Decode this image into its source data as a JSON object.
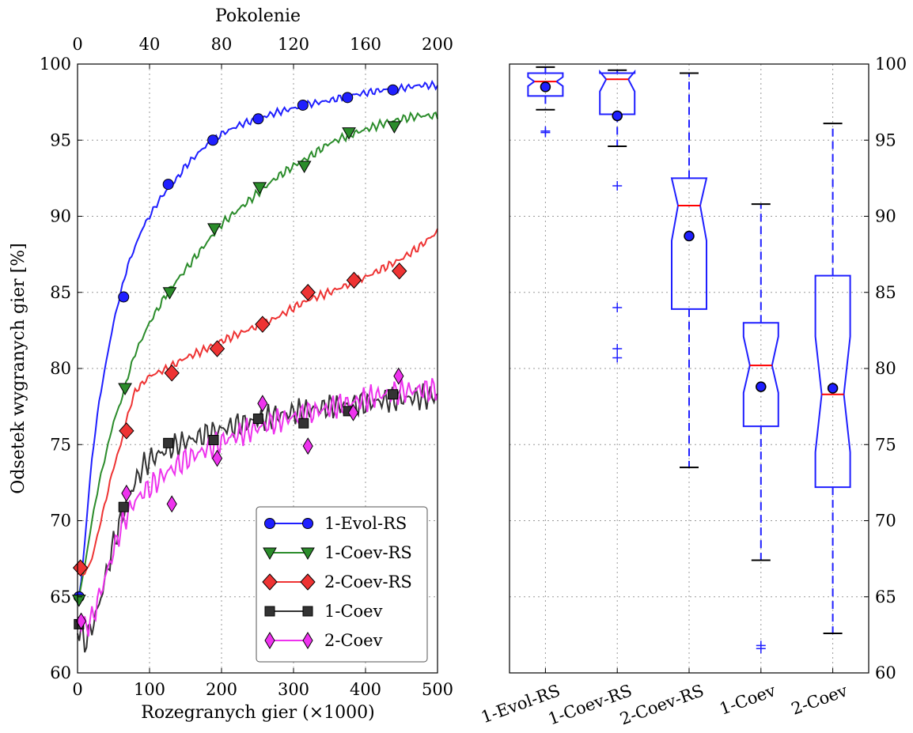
{
  "chart_data": [
    {
      "type": "line",
      "xlabel": "Rozegranych gier (×1000)",
      "ylabel": "Odsetek wygranych gier [%]",
      "top_xlabel": "Pokolenie",
      "xlim": [
        0,
        500
      ],
      "ylim": [
        60,
        100
      ],
      "xticks": [
        0,
        100,
        200,
        300,
        400,
        500
      ],
      "top_xticks": [
        0,
        40,
        80,
        120,
        160,
        200
      ],
      "yticks": [
        60,
        65,
        70,
        75,
        80,
        85,
        90,
        95,
        100
      ],
      "grid": true,
      "legend_position": "lower-right",
      "series": [
        {
          "name": "1-Evol-RS",
          "color": "#1f1fff",
          "marker": "circle",
          "x": [
            0,
            5,
            10,
            15,
            20,
            25,
            30,
            40,
            50,
            60,
            70,
            80,
            90,
            100,
            110,
            120,
            130,
            140,
            150,
            175,
            200,
            225,
            250,
            275,
            300,
            325,
            350,
            375,
            400,
            425,
            450,
            475,
            500
          ],
          "y": [
            64.5,
            66.0,
            68.5,
            71.5,
            74.0,
            76.0,
            77.8,
            80.5,
            83.0,
            85.0,
            86.8,
            88.0,
            89.2,
            90.0,
            90.8,
            91.5,
            92.0,
            92.6,
            93.3,
            94.5,
            95.4,
            96.0,
            96.4,
            96.8,
            97.1,
            97.4,
            97.6,
            97.9,
            98.1,
            98.3,
            98.4,
            98.6,
            98.6
          ],
          "marker_x": [
            2,
            64,
            126,
            188,
            251,
            313,
            375,
            438
          ],
          "marker_y": [
            65.0,
            84.7,
            92.1,
            95.0,
            96.4,
            97.3,
            97.8,
            98.3
          ]
        },
        {
          "name": "1-Coev-RS",
          "color": "#2b8c2b",
          "marker": "triangle-down",
          "x": [
            0,
            10,
            20,
            30,
            40,
            50,
            60,
            70,
            80,
            100,
            125,
            150,
            175,
            200,
            225,
            250,
            275,
            300,
            325,
            350,
            375,
            400,
            425,
            450,
            475,
            500
          ],
          "y": [
            64.5,
            67.0,
            70.0,
            72.5,
            74.5,
            76.5,
            77.8,
            79.5,
            81.0,
            83.0,
            85.0,
            86.5,
            88.0,
            89.5,
            90.5,
            91.5,
            92.5,
            93.3,
            94.0,
            94.8,
            95.3,
            95.7,
            96.1,
            96.4,
            96.6,
            96.6
          ],
          "marker_x": [
            2,
            66,
            128,
            190,
            253,
            315,
            377,
            440
          ],
          "marker_y": [
            64.8,
            78.7,
            85.0,
            89.2,
            91.9,
            93.3,
            95.5,
            95.9
          ]
        },
        {
          "name": "2-Coev-RS",
          "color": "#ee3333",
          "marker": "diamond",
          "x": [
            0,
            10,
            20,
            30,
            40,
            50,
            60,
            70,
            80,
            100,
            125,
            150,
            175,
            200,
            225,
            250,
            275,
            300,
            325,
            350,
            375,
            400,
            425,
            450,
            475,
            500
          ],
          "y": [
            66.5,
            66.5,
            67.5,
            69.5,
            71.5,
            73.5,
            75.0,
            77.0,
            78.5,
            79.5,
            80.0,
            80.7,
            81.2,
            81.8,
            82.3,
            82.8,
            83.3,
            84.0,
            84.6,
            85.0,
            85.5,
            86.0,
            86.6,
            87.2,
            88.0,
            89.0
          ],
          "marker_x": [
            4,
            68,
            131,
            194,
            257,
            320,
            384,
            447
          ],
          "marker_y": [
            66.9,
            75.9,
            79.7,
            81.3,
            82.9,
            85.0,
            85.8,
            86.4
          ]
        },
        {
          "name": "1-Coev",
          "color": "#333333",
          "marker": "square",
          "x": [
            0,
            10,
            20,
            30,
            40,
            50,
            60,
            70,
            80,
            90,
            100,
            125,
            150,
            175,
            200,
            225,
            250,
            275,
            300,
            325,
            350,
            375,
            400,
            425,
            450,
            475,
            500
          ],
          "y": [
            63.0,
            62.0,
            63.0,
            64.5,
            66.5,
            68.5,
            70.0,
            71.5,
            72.5,
            73.5,
            74.0,
            74.7,
            75.2,
            75.6,
            76.0,
            76.3,
            76.6,
            76.9,
            77.1,
            77.3,
            77.5,
            77.6,
            77.7,
            77.9,
            78.0,
            78.1,
            78.2
          ],
          "marker_x": [
            2,
            64,
            126,
            189,
            251,
            314,
            376,
            438
          ],
          "marker_y": [
            63.2,
            70.9,
            75.1,
            75.3,
            76.7,
            76.4,
            77.2,
            78.3
          ]
        },
        {
          "name": "2-Coev",
          "color": "#ee33ee",
          "marker": "thin-diamond",
          "x": [
            0,
            10,
            20,
            30,
            40,
            50,
            60,
            70,
            80,
            90,
            100,
            125,
            150,
            175,
            200,
            225,
            250,
            275,
            300,
            325,
            350,
            375,
            400,
            425,
            450,
            475,
            500
          ],
          "y": [
            63.5,
            63.0,
            63.5,
            65.0,
            66.5,
            68.0,
            69.5,
            70.5,
            71.3,
            71.8,
            72.2,
            73.2,
            74.0,
            74.6,
            75.2,
            75.7,
            76.1,
            76.5,
            76.8,
            77.1,
            77.4,
            77.7,
            78.0,
            78.3,
            78.5,
            78.6,
            78.6
          ],
          "marker_x": [
            5,
            68,
            131,
            194,
            257,
            320,
            383,
            446
          ],
          "marker_y": [
            63.4,
            71.8,
            71.1,
            74.1,
            77.7,
            74.9,
            77.1,
            79.5
          ]
        }
      ]
    },
    {
      "type": "box",
      "ylim": [
        60,
        100
      ],
      "yticks": [
        60,
        65,
        70,
        75,
        80,
        85,
        90,
        95,
        100
      ],
      "grid": true,
      "categories": [
        "1-Evol-RS",
        "1-Coev-RS",
        "2-Coev-RS",
        "1-Coev",
        "2-Coev"
      ],
      "boxes": [
        {
          "name": "1-Evol-RS",
          "whisker_low": 97.0,
          "q1": 97.9,
          "notch_low": 98.55,
          "median": 98.85,
          "notch_high": 99.15,
          "q3": 99.4,
          "whisker_high": 99.8,
          "mean": 98.5,
          "outliers": [
            95.6,
            95.5
          ]
        },
        {
          "name": "1-Coev-RS",
          "whisker_low": 94.6,
          "q1": 96.7,
          "notch_low": 98.2,
          "median": 99.0,
          "notch_high": 99.5,
          "q3": 99.4,
          "whisker_high": 99.6,
          "mean": 96.6,
          "outliers": [
            92.0,
            84.0,
            81.3,
            80.7
          ]
        },
        {
          "name": "2-Coev-RS",
          "whisker_low": 73.5,
          "q1": 83.9,
          "notch_low": 88.4,
          "median": 90.7,
          "notch_high": 92.5,
          "q3": 92.5,
          "whisker_high": 99.4,
          "mean": 88.7,
          "outliers": []
        },
        {
          "name": "1-Coev",
          "whisker_low": 67.4,
          "q1": 76.2,
          "notch_low": 78.4,
          "median": 80.2,
          "notch_high": 82.1,
          "q3": 83.0,
          "whisker_high": 90.8,
          "mean": 78.8,
          "outliers": [
            61.8,
            61.6
          ]
        },
        {
          "name": "2-Coev",
          "whisker_low": 62.6,
          "q1": 72.2,
          "notch_low": 74.5,
          "median": 78.3,
          "notch_high": 82.1,
          "q3": 86.1,
          "whisker_high": 96.1,
          "mean": 78.7,
          "outliers": []
        }
      ]
    }
  ]
}
